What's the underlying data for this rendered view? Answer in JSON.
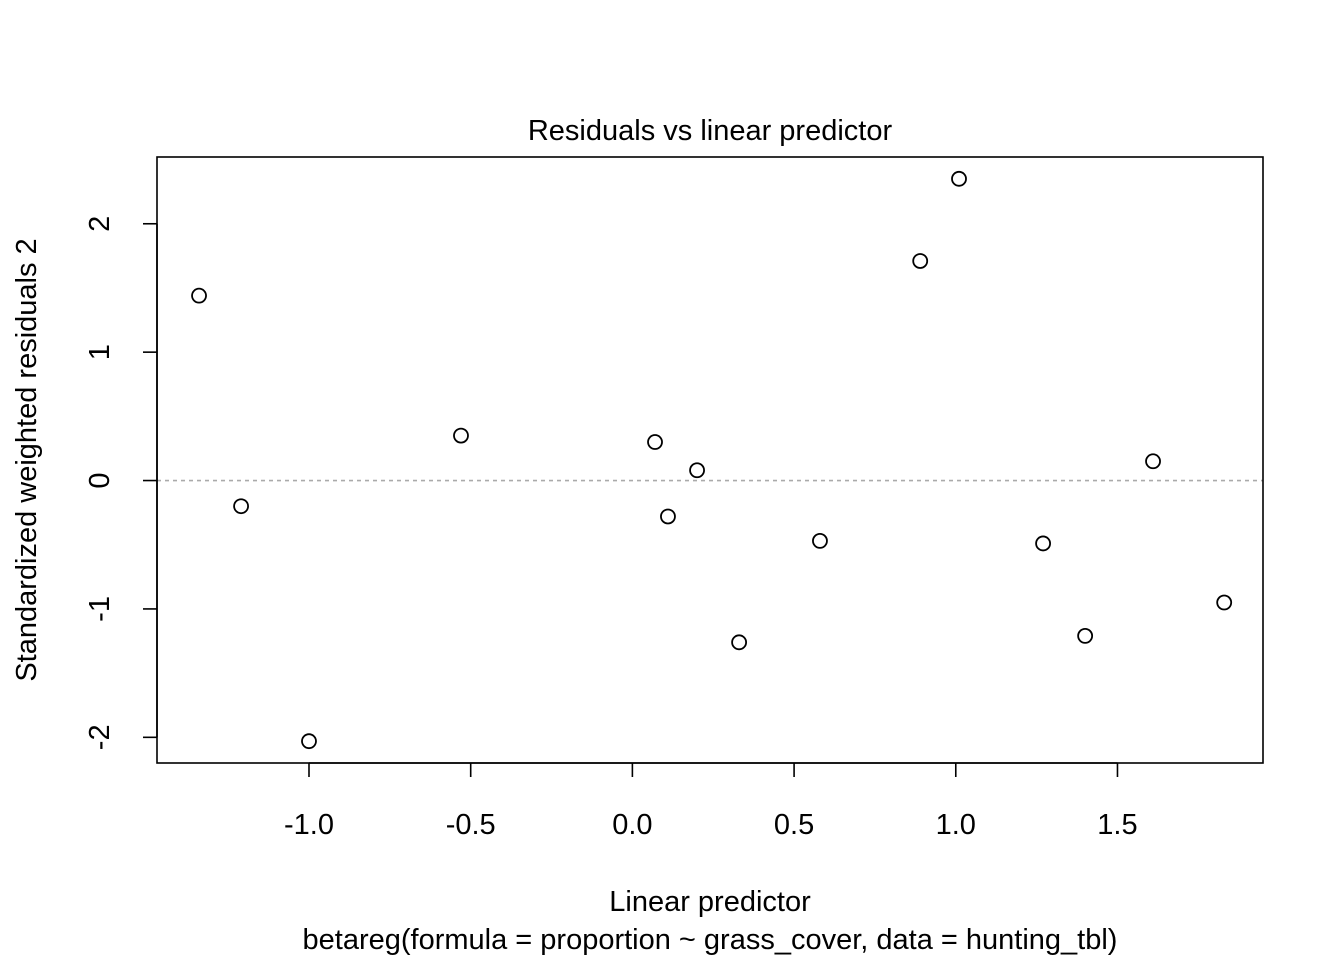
{
  "chart_data": {
    "type": "scatter",
    "title": "Residuals vs linear predictor",
    "xlabel": "Linear predictor",
    "subtitle": "betareg(formula = proportion ~ grass_cover, data = hunting_tbl)",
    "ylabel": "Standardized weighted residuals 2",
    "xlim": [
      -1.47,
      1.95
    ],
    "ylim": [
      -2.2,
      2.52
    ],
    "x_ticks": [
      -1.0,
      -0.5,
      0.0,
      0.5,
      1.0,
      1.5
    ],
    "x_tick_labels": [
      "-1.0",
      "-0.5",
      "0.0",
      "0.5",
      "1.0",
      "1.5"
    ],
    "y_ticks": [
      -2,
      -1,
      0,
      1,
      2
    ],
    "y_tick_labels": [
      "-2",
      "-1",
      "0",
      "1",
      "2"
    ],
    "reference_line": {
      "y": 0,
      "style": "dashed",
      "color": "#aaaaaa"
    },
    "grid": false,
    "legend": "none",
    "point_style": "open-circle",
    "point_color": "#000000",
    "points": [
      {
        "x": -1.34,
        "y": 1.44
      },
      {
        "x": -1.21,
        "y": -0.2
      },
      {
        "x": -1.0,
        "y": -2.03
      },
      {
        "x": -0.53,
        "y": 0.35
      },
      {
        "x": 0.07,
        "y": 0.3
      },
      {
        "x": 0.11,
        "y": -0.28
      },
      {
        "x": 0.2,
        "y": 0.08
      },
      {
        "x": 0.33,
        "y": -1.26
      },
      {
        "x": 0.58,
        "y": -0.47
      },
      {
        "x": 0.89,
        "y": 1.71
      },
      {
        "x": 1.01,
        "y": 2.35
      },
      {
        "x": 1.27,
        "y": -0.49
      },
      {
        "x": 1.4,
        "y": -1.21
      },
      {
        "x": 1.61,
        "y": 0.15
      },
      {
        "x": 1.83,
        "y": -0.95
      }
    ]
  }
}
